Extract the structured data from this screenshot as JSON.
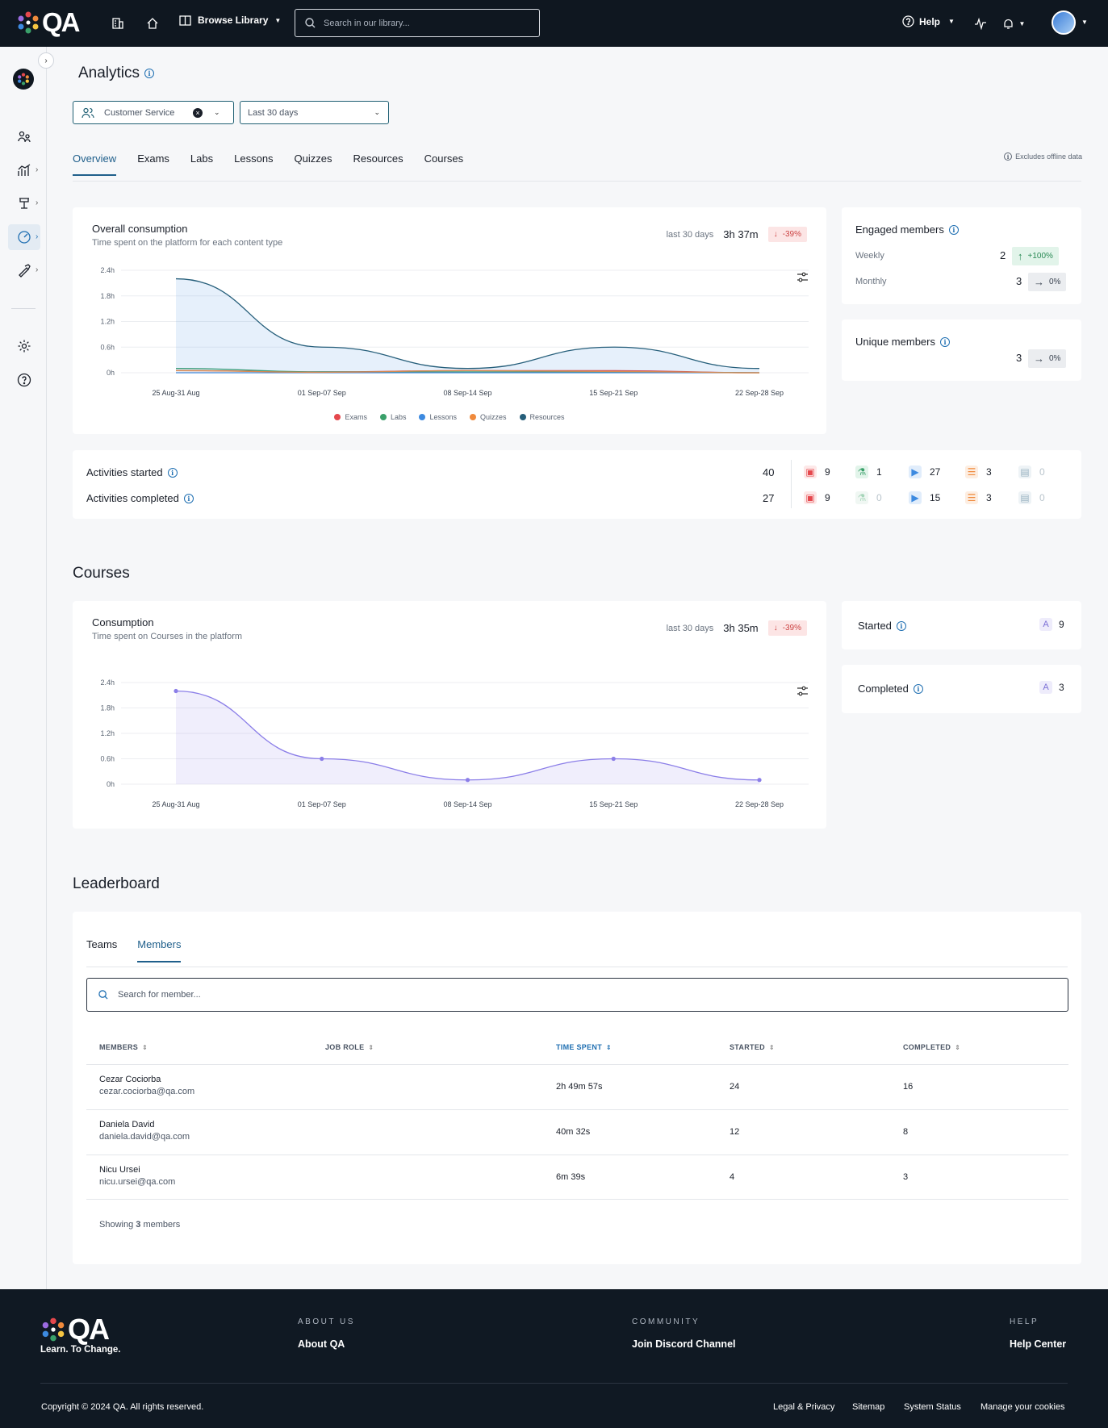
{
  "topnav": {
    "logo_text": "QA",
    "browse_label": "Browse Library",
    "search_placeholder": "Search in our library...",
    "help_label": "Help"
  },
  "page": {
    "title": "Analytics",
    "filter_team": "Customer Service",
    "filter_period": "Last 30 days",
    "tabs": [
      "Overview",
      "Exams",
      "Labs",
      "Lessons",
      "Quizzes",
      "Resources",
      "Courses"
    ],
    "excludes_note": "Excludes offline data"
  },
  "overall": {
    "title": "Overall consumption",
    "subtitle": "Time spent on the platform for each content type",
    "period": "last 30 days",
    "total": "3h 37m",
    "change": "-39%",
    "chart_data": {
      "type": "area",
      "x": [
        "25 Aug-31 Aug",
        "01 Sep-07 Sep",
        "08 Sep-14 Sep",
        "15 Sep-21 Sep",
        "22 Sep-28 Sep"
      ],
      "y_ticks": [
        "0h",
        "0.6h",
        "1.2h",
        "1.8h",
        "2.4h"
      ],
      "ylim": [
        0,
        2.4
      ],
      "series": [
        {
          "name": "Exams",
          "color": "#e5484d",
          "values": [
            0.05,
            0.02,
            0.05,
            0.05,
            0.0
          ]
        },
        {
          "name": "Labs",
          "color": "#3aa06a",
          "values": [
            0.1,
            0.02,
            0.02,
            0.02,
            0.0
          ]
        },
        {
          "name": "Lessons",
          "color": "#3d8ae0",
          "values": [
            0.0,
            0.0,
            0.0,
            0.0,
            0.0
          ]
        },
        {
          "name": "Quizzes",
          "color": "#f08a3c",
          "values": [
            0.05,
            0.01,
            0.05,
            0.03,
            0.0
          ]
        },
        {
          "name": "Resources",
          "color": "#255e7a",
          "values": [
            2.2,
            0.6,
            0.1,
            0.6,
            0.1
          ]
        }
      ]
    }
  },
  "engaged": {
    "title": "Engaged members",
    "weekly_label": "Weekly",
    "weekly_value": "2",
    "weekly_change": "+100%",
    "monthly_label": "Monthly",
    "monthly_value": "3",
    "monthly_change": "0%"
  },
  "unique": {
    "title": "Unique members",
    "value": "3",
    "change": "0%"
  },
  "activities": {
    "started_label": "Activities started",
    "started_total": "40",
    "completed_label": "Activities completed",
    "completed_total": "27",
    "started_breakdown": [
      "9",
      "1",
      "27",
      "3",
      "0"
    ],
    "completed_breakdown": [
      "9",
      "0",
      "15",
      "3",
      "0"
    ]
  },
  "courses": {
    "section_title": "Courses",
    "title": "Consumption",
    "subtitle": "Time spent on Courses in the platform",
    "period": "last 30 days",
    "total": "3h 35m",
    "change": "-39%",
    "started_label": "Started",
    "started_value": "9",
    "completed_label": "Completed",
    "completed_value": "3",
    "chart_data": {
      "type": "area",
      "x": [
        "25 Aug-31 Aug",
        "01 Sep-07 Sep",
        "08 Sep-14 Sep",
        "15 Sep-21 Sep",
        "22 Sep-28 Sep"
      ],
      "y_ticks": [
        "0h",
        "0.6h",
        "1.2h",
        "1.8h",
        "2.4h"
      ],
      "ylim": [
        0,
        2.4
      ],
      "series": [
        {
          "color": "#8b7ee8",
          "values": [
            2.2,
            0.6,
            0.1,
            0.6,
            0.1
          ]
        }
      ]
    }
  },
  "leaderboard": {
    "section_title": "Leaderboard",
    "tabs": [
      "Teams",
      "Members"
    ],
    "search_placeholder": "Search for member...",
    "columns": [
      "MEMBERS",
      "JOB ROLE",
      "TIME SPENT",
      "STARTED",
      "COMPLETED"
    ],
    "rows": [
      {
        "name": "Cezar Cociorba",
        "email": "cezar.cociorba@qa.com",
        "role": "",
        "time": "2h 49m 57s",
        "started": "24",
        "completed": "16"
      },
      {
        "name": "Daniela David",
        "email": "daniela.david@qa.com",
        "role": "",
        "time": "40m 32s",
        "started": "12",
        "completed": "8"
      },
      {
        "name": "Nicu Ursei",
        "email": "nicu.ursei@qa.com",
        "role": "",
        "time": "6m 39s",
        "started": "4",
        "completed": "3"
      }
    ],
    "showing_prefix": "Showing",
    "showing_count": "3",
    "showing_suffix": "members"
  },
  "footer": {
    "logo_text": "QA",
    "tagline": "Learn. To Change.",
    "about_head": "ABOUT US",
    "about_link": "About QA",
    "community_head": "COMMUNITY",
    "community_link": "Join Discord Channel",
    "help_head": "HELP",
    "help_link": "Help Center",
    "copyright": "Copyright © 2024 QA. All rights reserved.",
    "legal": "Legal & Privacy",
    "sitemap": "Sitemap",
    "status": "System Status",
    "cookies": "Manage your cookies"
  }
}
